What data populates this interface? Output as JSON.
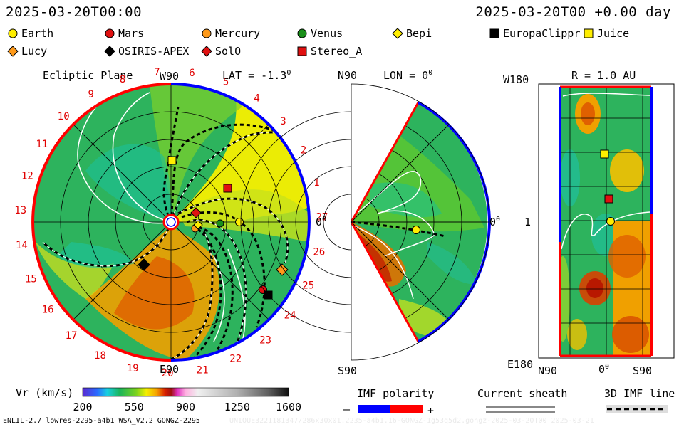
{
  "header": {
    "left_time": "2025-03-20T00:00",
    "right_time": "2025-03-20T00 +0.00 day"
  },
  "legend": [
    {
      "label": "Earth",
      "color": "#ffee00",
      "shape": "circle"
    },
    {
      "label": "Mars",
      "color": "#e01010",
      "shape": "circle"
    },
    {
      "label": "Mercury",
      "color": "#ff9a1a",
      "shape": "circle"
    },
    {
      "label": "Venus",
      "color": "#1a8f1a",
      "shape": "circle"
    },
    {
      "label": "Bepi",
      "color": "#ffee00",
      "shape": "diamond"
    },
    {
      "label": "EuropaClippr",
      "color": "#000000",
      "shape": "square"
    },
    {
      "label": "Juice",
      "color": "#ffee00",
      "shape": "square"
    },
    {
      "label": "Lucy",
      "color": "#ff9a1a",
      "shape": "diamond"
    },
    {
      "label": "OSIRIS-APEX",
      "color": "#000000",
      "shape": "diamond"
    },
    {
      "label": "SolO",
      "color": "#e01010",
      "shape": "diamond"
    },
    {
      "label": "Stereo_A",
      "color": "#e01010",
      "shape": "square"
    }
  ],
  "ecliptic": {
    "title": "Ecliptic Plane",
    "top_label": "W90",
    "lat": "LAT = -1.3",
    "lat_sup": "0",
    "right_label": "0",
    "right_sup": "0",
    "bottom_label": "E90",
    "rotation_numbers": [
      "1",
      "2",
      "3",
      "4",
      "5",
      "6",
      "7",
      "8",
      "9",
      "10",
      "11",
      "12",
      "13",
      "14",
      "15",
      "16",
      "17",
      "18",
      "19",
      "20",
      "21",
      "22",
      "23",
      "24",
      "25",
      "26",
      "27"
    ]
  },
  "meridional": {
    "top_left": "N90",
    "lon": "LON = 0",
    "lon_sup": "0",
    "right_label": "0",
    "right_sup": "0",
    "bottom_left": "S90"
  },
  "shell": {
    "title": "R = 1.0 AU",
    "y_top": "W180",
    "y_mid": "1",
    "y_bottom": "E180",
    "x_left": "N90",
    "x_mid": "0",
    "x_mid_sup": "0",
    "x_right": "S90"
  },
  "colorbar": {
    "title": "Vr (km/s)",
    "ticks": [
      "200",
      "550",
      "900",
      "1250",
      "1600"
    ],
    "range": [
      200,
      1600
    ]
  },
  "imf": {
    "title": "IMF polarity",
    "minus": "–",
    "plus": "+"
  },
  "sheath": {
    "title": "Current sheath"
  },
  "imf3d": {
    "title": "3D IMF line"
  },
  "footer": {
    "left": "ENLIL-2.7 lowres-2295-a4b1 WSA_V2.2 GONGZ-2295",
    "right": "UNIQUE3221181347/286x30x01.2235-a4b1.16-GONGZ-1g53q5d2.gongz-2025-03-20T00   2025-03-21"
  }
}
